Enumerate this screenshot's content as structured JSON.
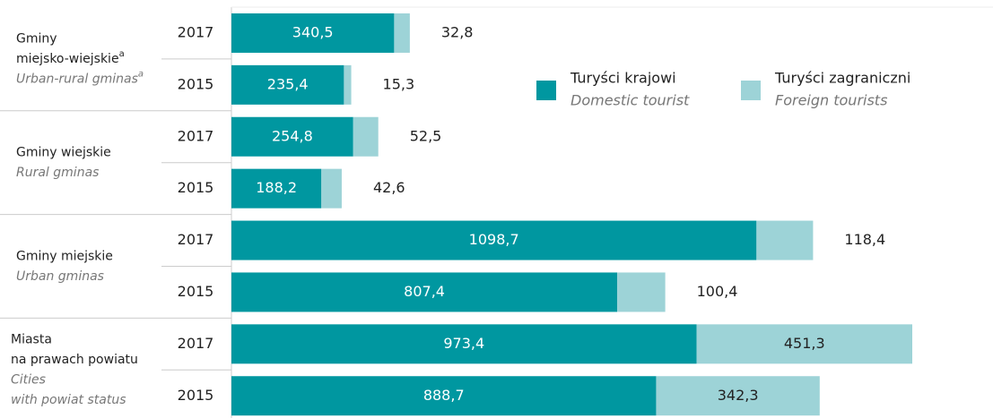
{
  "chart_data": {
    "type": "stacked-bar-horizontal",
    "groups": [
      {
        "name_lines": [
          "Gminy",
          "miejsko-wiejskie"
        ],
        "name_en_lines": [
          "Urban-rural gminas"
        ],
        "note": "a"
      },
      {
        "name_lines": [
          "Gminy wiejskie"
        ],
        "name_en_lines": [
          "Rural gminas"
        ]
      },
      {
        "name_lines": [
          "Gminy miejskie"
        ],
        "name_en_lines": [
          "Urban gminas"
        ]
      },
      {
        "name_lines": [
          "Miasta",
          "na prawach powiatu"
        ],
        "name_en_lines": [
          "Cities",
          "with powiat status"
        ]
      }
    ],
    "categories": [
      "2017",
      "2015",
      "2017",
      "2015",
      "2017",
      "2015",
      "2017",
      "2015"
    ],
    "series": [
      {
        "name": "Turyści krajowi",
        "name_en": "Domestic tourist",
        "color": "#0097a0",
        "values": [
          340.5,
          235.4,
          254.8,
          188.2,
          1098.7,
          807.4,
          973.4,
          888.7
        ],
        "value_labels": [
          "340,5",
          "235,4",
          "254,8",
          "188,2",
          "1098,7",
          "807,4",
          "973,4",
          "888,7"
        ]
      },
      {
        "name": "Turyści zagraniczni",
        "name_en": "Foreign tourists",
        "color": "#9dd3d7",
        "values": [
          32.8,
          15.3,
          52.5,
          42.6,
          118.4,
          100.4,
          451.3,
          342.3
        ],
        "value_labels": [
          "32,8",
          "15,3",
          "52,5",
          "42,6",
          "118,4",
          "100,4",
          "451,3",
          "342,3"
        ]
      }
    ]
  }
}
